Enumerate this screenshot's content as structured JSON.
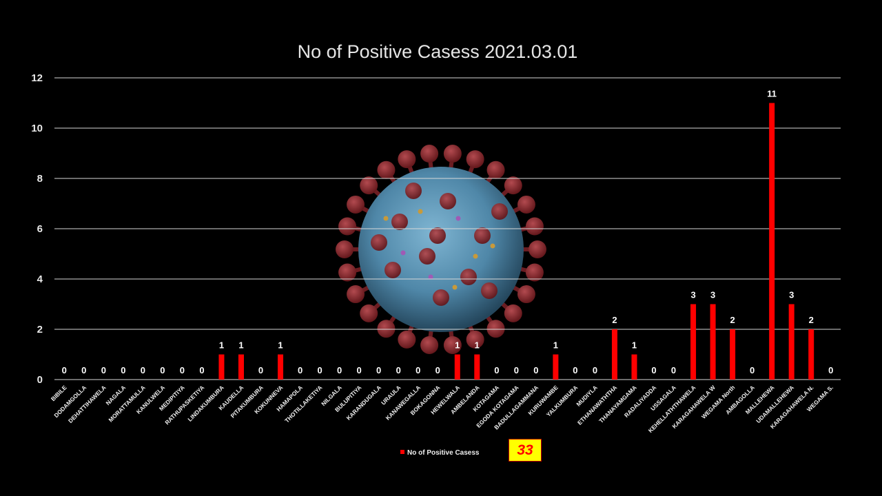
{
  "colors": {
    "background": "#000000",
    "bar": "#ff0000",
    "gridline": "#d9d9d9",
    "virus_shell": "#5a8fb0",
    "virus_spike": "#8b2a2f",
    "total_box_bg": "#ffff00",
    "total_box_text": "#ff0000"
  },
  "decoration": {
    "image": "coronavirus-illustration"
  },
  "total": "33",
  "chart_data": {
    "type": "bar",
    "title": "No of Positive Casess 2021.03.01",
    "xlabel": "",
    "ylabel": "",
    "ylim": [
      0,
      12
    ],
    "yticks": [
      "0",
      "2",
      "4",
      "6",
      "8",
      "10",
      "12"
    ],
    "grid": true,
    "legend_position": "bottom",
    "categories": [
      "BIBILE",
      "DODAMGOLLA",
      "DEHATTIHAWELA",
      "NAGALA",
      "MORATTAMULLA",
      "KANULWELA",
      "MEDIPITIYA",
      "RATHUPASKETIYA",
      "LINDAKUMBURA",
      "KAUDELLA",
      "PITAKUMBURA",
      "KOKUNNEVA",
      "HAMAPOLA",
      "THOTILLAKETIYA",
      "NILGALA",
      "BULUPITIYA",
      "KARANDUGALA",
      "URAULA",
      "KANAWEGALLA",
      "BOKAGONNA",
      "HEWELWALA",
      "AMBELANDA",
      "KOTAGAMA",
      "EGODA KOTAGAMA",
      "BADULLAGAMMANA",
      "KURUWAMBE",
      "YALKUMBURA",
      "MUDIYLA",
      "ETHANAWATHTHA",
      "THANAYAMGAMA",
      "RADALIYADDA",
      "USSAGALA",
      "KEHELLATHTHAWELA",
      "KARAGAHAWELA W",
      "WEGAMA North",
      "AMBAGOLLA",
      "MALLEHEWA",
      "UDAMALLEHEWA",
      "KARAGAHAWELA N.",
      "WEGAMA S."
    ],
    "series": [
      {
        "name": "No of Positive Casess",
        "values": [
          0,
          0,
          0,
          0,
          0,
          0,
          0,
          0,
          1,
          1,
          0,
          1,
          0,
          0,
          0,
          0,
          0,
          0,
          0,
          0,
          1,
          1,
          0,
          0,
          0,
          1,
          0,
          0,
          2,
          1,
          0,
          0,
          3,
          3,
          2,
          0,
          11,
          3,
          2,
          0
        ]
      }
    ]
  }
}
